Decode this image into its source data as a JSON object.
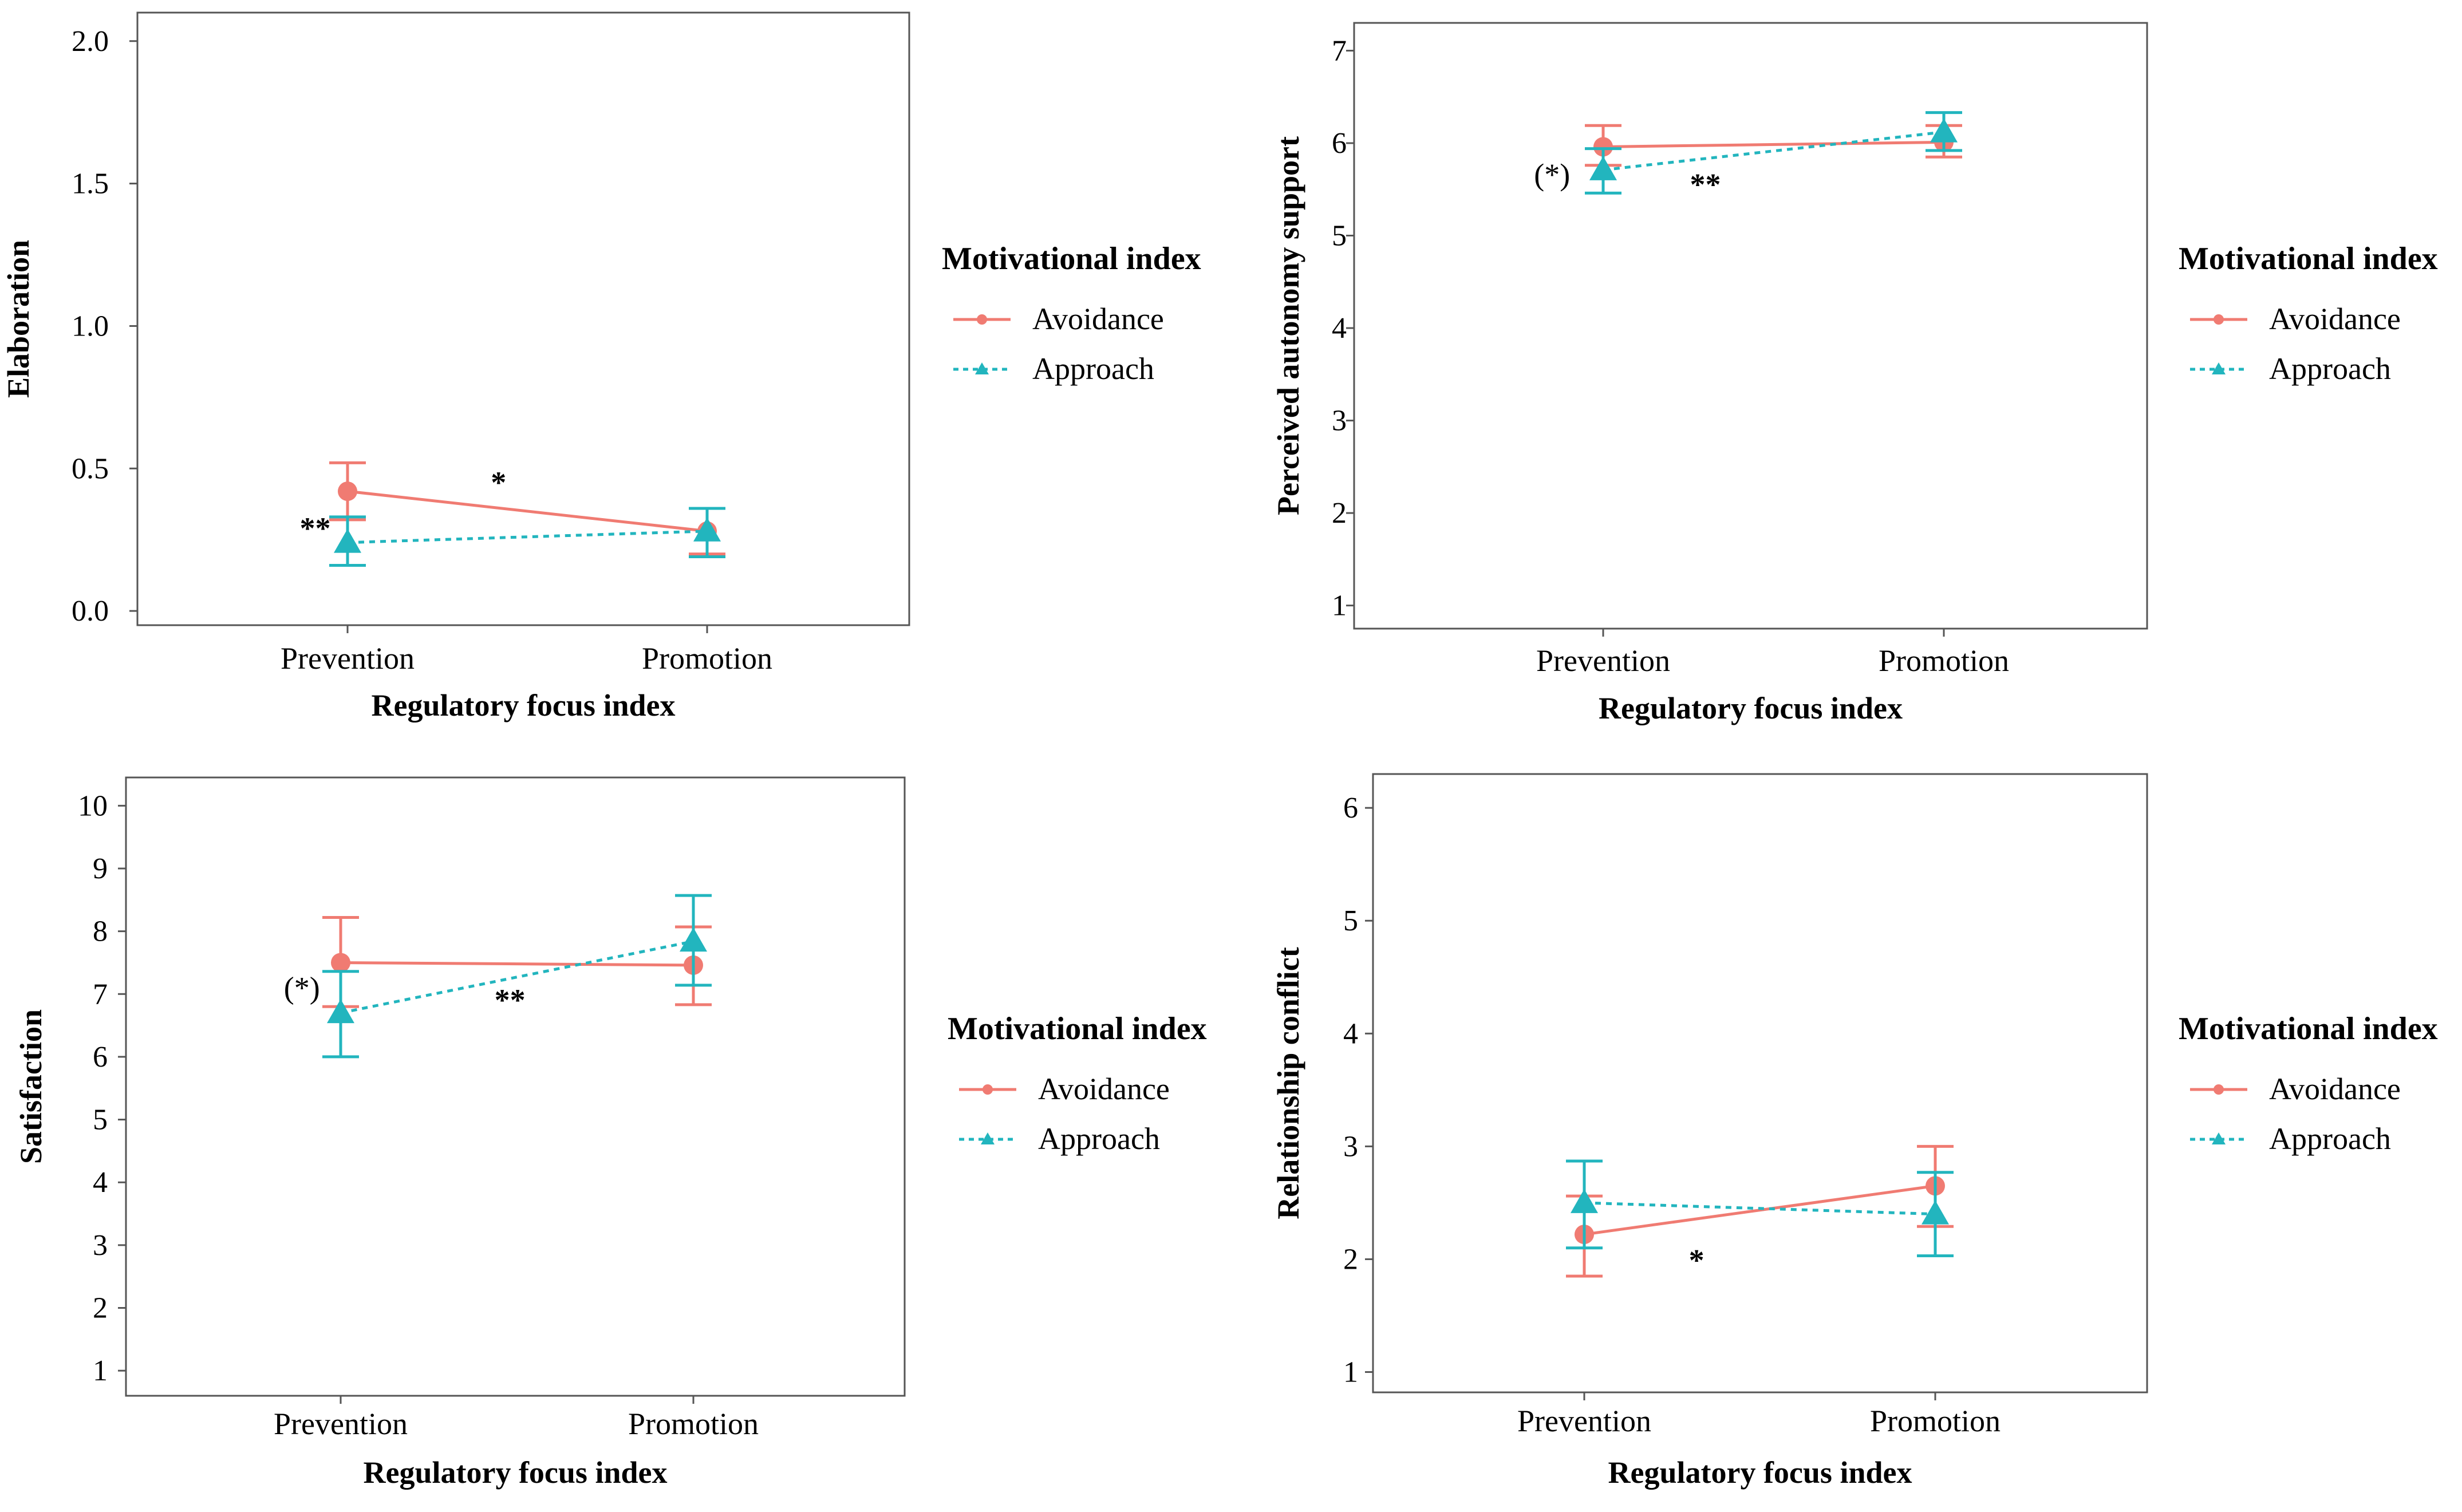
{
  "legend": {
    "title": "Motivational index",
    "entries": [
      "Avoidance",
      "Approach"
    ]
  },
  "colors": {
    "avoidance": "#F07B72",
    "approach": "#22B5BE",
    "frame": "#555555",
    "background": "#ffffff"
  },
  "chart_data": [
    {
      "type": "line",
      "title": "",
      "xlabel": "Regulatory focus index",
      "ylabel": "Elaboration",
      "categories": [
        "Prevention",
        "Promotion"
      ],
      "ylim": [
        -0.05,
        2.1
      ],
      "yticks": [
        "0.0",
        "0.5",
        "1.0",
        "1.5",
        "2.0"
      ],
      "series": [
        {
          "name": "Avoidance",
          "values": [
            0.42,
            0.28
          ],
          "ci_low": [
            0.32,
            0.2
          ],
          "ci_high": [
            0.52,
            0.36
          ]
        },
        {
          "name": "Approach",
          "values": [
            0.24,
            0.28
          ],
          "ci_low": [
            0.16,
            0.19
          ],
          "ci_high": [
            0.33,
            0.36
          ]
        }
      ],
      "annotations": [
        {
          "text": "*",
          "x": 0.42,
          "y": 0.45
        },
        {
          "text": "**",
          "x": -0.09,
          "y": 0.29
        }
      ]
    },
    {
      "type": "line",
      "title": "",
      "xlabel": "Regulatory focus index",
      "ylabel": "Perceived autonomy support",
      "categories": [
        "Prevention",
        "Promotion"
      ],
      "ylim": [
        0.75,
        7.3
      ],
      "yticks": [
        "1",
        "2",
        "3",
        "4",
        "5",
        "6",
        "7"
      ],
      "series": [
        {
          "name": "Avoidance",
          "values": [
            5.96,
            6.01
          ],
          "ci_low": [
            5.76,
            5.85
          ],
          "ci_high": [
            6.19,
            6.19
          ]
        },
        {
          "name": "Approach",
          "values": [
            5.71,
            6.12
          ],
          "ci_low": [
            5.46,
            5.92
          ],
          "ci_high": [
            5.94,
            6.33
          ]
        }
      ],
      "annotations": [
        {
          "text": "(*)",
          "x": -0.15,
          "y": 5.66
        },
        {
          "text": "**",
          "x": 0.3,
          "y": 5.55
        }
      ]
    },
    {
      "type": "line",
      "title": "",
      "xlabel": "Regulatory focus index",
      "ylabel": "Satisfaction",
      "categories": [
        "Prevention",
        "Promotion"
      ],
      "ylim": [
        0.6,
        10.45
      ],
      "yticks": [
        "1",
        "2",
        "3",
        "4",
        "5",
        "6",
        "7",
        "8",
        "9",
        "10"
      ],
      "series": [
        {
          "name": "Avoidance",
          "values": [
            7.5,
            7.46
          ],
          "ci_low": [
            6.8,
            6.83
          ],
          "ci_high": [
            8.22,
            8.07
          ]
        },
        {
          "name": "Approach",
          "values": [
            6.7,
            7.84
          ],
          "ci_low": [
            6.0,
            7.14
          ],
          "ci_high": [
            7.36,
            8.57
          ]
        }
      ],
      "annotations": [
        {
          "text": "(*)",
          "x": -0.11,
          "y": 7.1
        },
        {
          "text": "**",
          "x": 0.48,
          "y": 6.9
        }
      ]
    },
    {
      "type": "line",
      "title": "",
      "xlabel": "Regulatory focus index",
      "ylabel": "Relationship conflict",
      "categories": [
        "Prevention",
        "Promotion"
      ],
      "ylim": [
        0.82,
        6.3
      ],
      "yticks": [
        "1",
        "2",
        "3",
        "4",
        "5",
        "6"
      ],
      "series": [
        {
          "name": "Avoidance",
          "values": [
            2.22,
            2.65
          ],
          "ci_low": [
            1.85,
            2.29
          ],
          "ci_high": [
            2.56,
            3.0
          ]
        },
        {
          "name": "Approach",
          "values": [
            2.5,
            2.4
          ],
          "ci_low": [
            2.1,
            2.03
          ],
          "ci_high": [
            2.87,
            2.77
          ]
        }
      ],
      "annotations": [
        {
          "text": "*",
          "x": 0.32,
          "y": 1.99
        }
      ]
    }
  ]
}
